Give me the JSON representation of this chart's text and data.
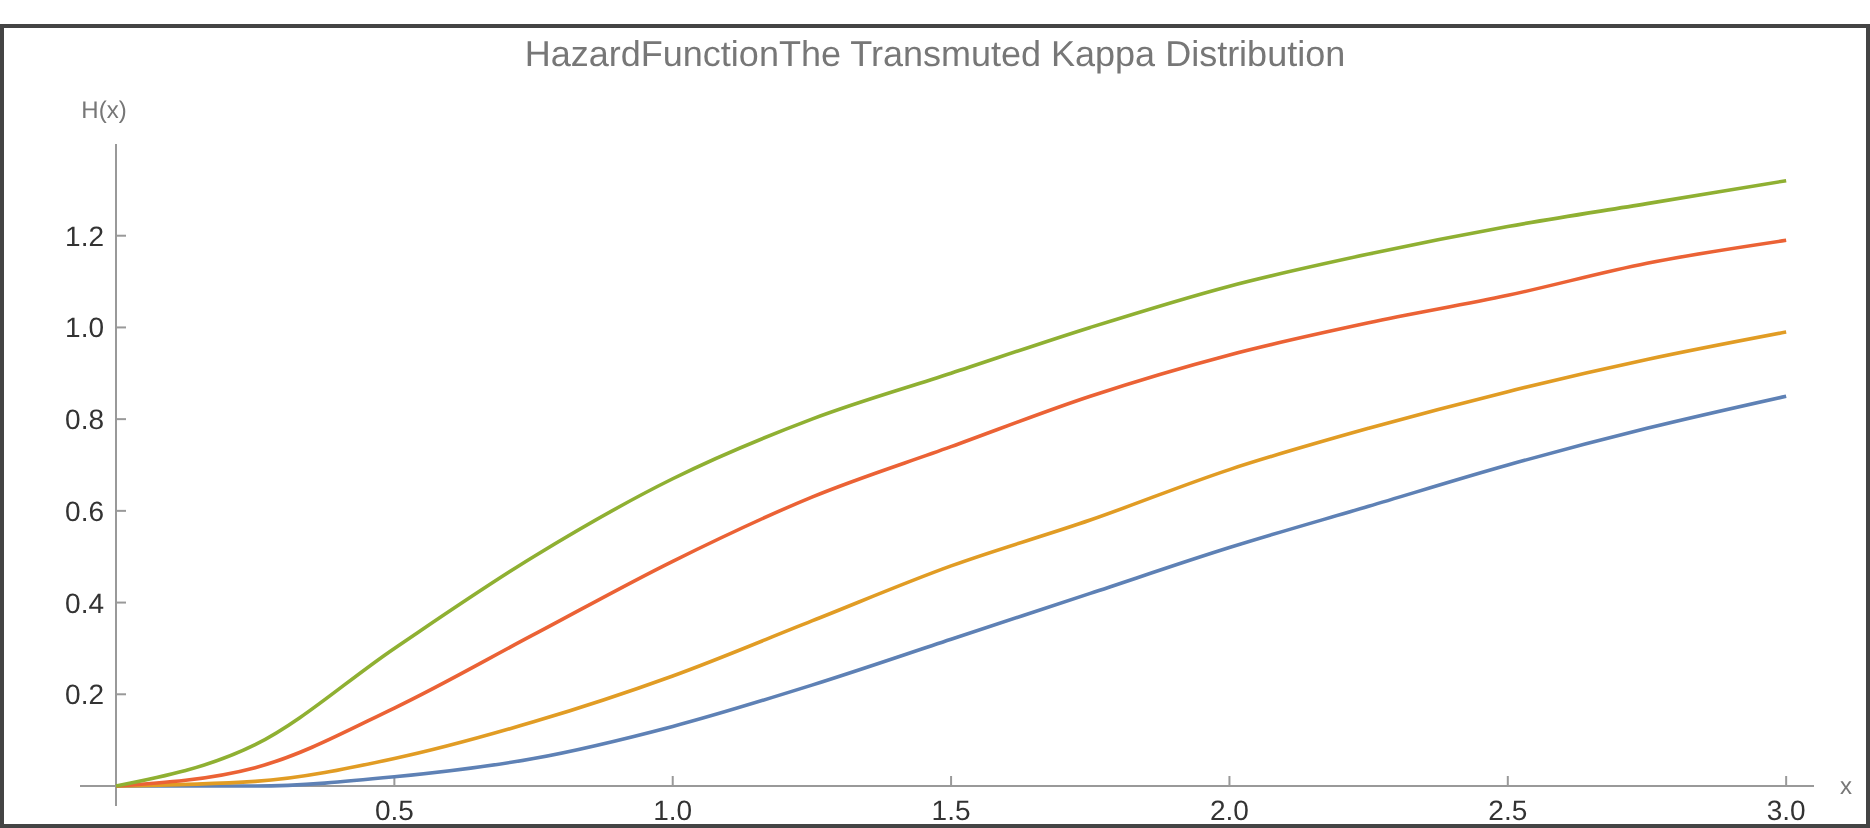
{
  "chart_data": {
    "type": "line",
    "title": "HazardFunctionThe Transmuted Kappa Distribution",
    "xlabel": "x",
    "ylabel": "H(x)",
    "x": [
      0,
      0.25,
      0.5,
      0.75,
      1,
      1.25,
      1.5,
      1.75,
      2,
      2.25,
      2.5,
      2.75,
      3
    ],
    "series": [
      {
        "color": "#5e81b5",
        "values": [
          0,
          0.0,
          0.02,
          0.06,
          0.13,
          0.22,
          0.32,
          0.42,
          0.52,
          0.61,
          0.7,
          0.78,
          0.85
        ]
      },
      {
        "color": "#e19c24",
        "values": [
          0,
          0.01,
          0.06,
          0.14,
          0.24,
          0.36,
          0.48,
          0.58,
          0.69,
          0.78,
          0.86,
          0.93,
          0.99
        ]
      },
      {
        "color": "#eb6235",
        "values": [
          0,
          0.04,
          0.17,
          0.33,
          0.49,
          0.63,
          0.74,
          0.85,
          0.94,
          1.01,
          1.07,
          1.14,
          1.19
        ]
      },
      {
        "color": "#8fb032",
        "values": [
          0,
          0.09,
          0.3,
          0.5,
          0.67,
          0.8,
          0.9,
          1.0,
          1.09,
          1.16,
          1.22,
          1.27,
          1.32
        ]
      }
    ],
    "xlim": [
      0,
      3.05
    ],
    "xticks": [
      0.5,
      {
        "value": 1,
        "label": "1.0"
      },
      1.5,
      {
        "value": 2,
        "label": "2.0"
      },
      2.5,
      {
        "value": 3,
        "label": "3.0"
      }
    ],
    "ylim": [
      0,
      1.4
    ],
    "yticks": [
      0.2,
      0.4,
      0.6,
      0.8,
      {
        "value": 1,
        "label": "1.0"
      },
      1.2
    ],
    "grid": false,
    "legend": false,
    "marker": "none",
    "line_style": "solid"
  }
}
